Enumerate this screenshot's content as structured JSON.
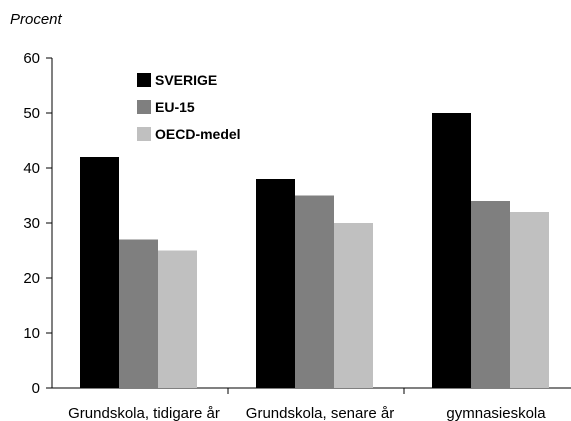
{
  "chart_data": {
    "type": "bar",
    "title": "",
    "ylabel": "Procent",
    "xlabel": "",
    "ylim": [
      0,
      60
    ],
    "yticks": [
      "0",
      "10",
      "20",
      "30",
      "40",
      "50",
      "60"
    ],
    "grid": false,
    "legend_position": "top-left",
    "categories": [
      "Grundskola, tidigare år",
      "Grundskola, senare år",
      "gymnasieskola"
    ],
    "series": [
      {
        "name": "SVERIGE",
        "color": "#000000",
        "values": [
          42,
          38,
          50
        ]
      },
      {
        "name": "EU-15",
        "color": "#7f7f7f",
        "values": [
          27,
          35,
          34
        ]
      },
      {
        "name": "OECD-medel",
        "color": "#c0c0c0",
        "values": [
          25,
          30,
          32
        ]
      }
    ]
  }
}
